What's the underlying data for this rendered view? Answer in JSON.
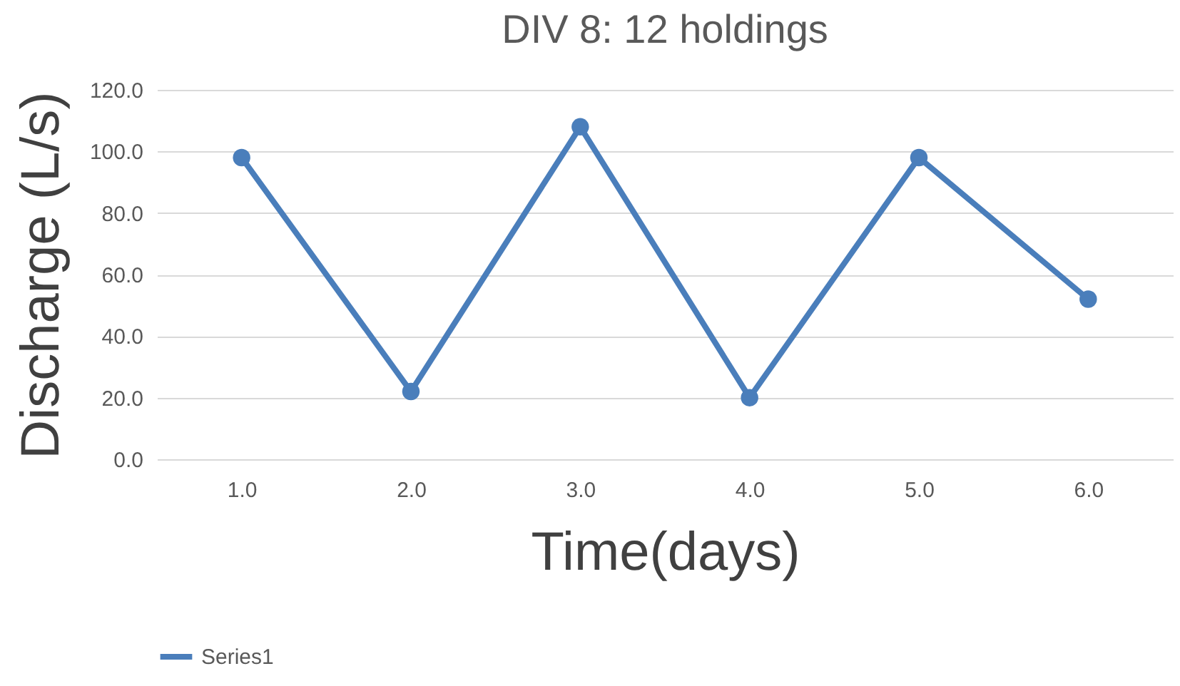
{
  "chart_data": {
    "type": "line",
    "title": "DIV 8: 12 holdings",
    "xlabel": "Time(days)",
    "ylabel": "Discharge (L/s)",
    "categories": [
      "1.0",
      "2.0",
      "3.0",
      "4.0",
      "5.0",
      "6.0"
    ],
    "series": [
      {
        "name": "Series1",
        "color": "#4a7ebb",
        "values": [
          98,
          22,
          108,
          20,
          98,
          52
        ]
      }
    ],
    "ylim": [
      0,
      120
    ],
    "yticks": [
      {
        "value": 0,
        "label": "0.0"
      },
      {
        "value": 20,
        "label": "20.0"
      },
      {
        "value": 40,
        "label": "40.0"
      },
      {
        "value": 60,
        "label": "60.0"
      },
      {
        "value": 80,
        "label": "80.0"
      },
      {
        "value": 100,
        "label": "100.0"
      },
      {
        "value": 120,
        "label": "120.0"
      }
    ],
    "grid": "y",
    "legend": "bottom",
    "marker": "circle",
    "line_style": "solid"
  }
}
